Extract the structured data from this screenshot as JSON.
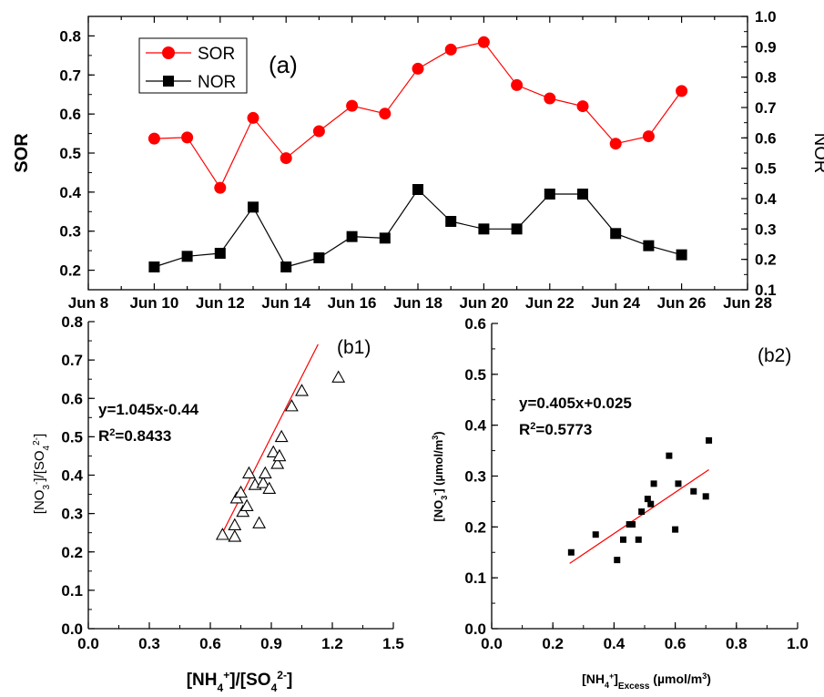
{
  "chart_data": [
    {
      "id": "a",
      "type": "line",
      "panel_label": "(a)",
      "x": [
        "2023-06-10",
        "2023-06-11",
        "2023-06-12",
        "2023-06-13",
        "2023-06-14",
        "2023-06-15",
        "2023-06-16",
        "2023-06-17",
        "2023-06-18",
        "2023-06-19",
        "2023-06-20",
        "2023-06-21",
        "2023-06-22",
        "2023-06-23",
        "2023-06-24",
        "2023-06-25",
        "2023-06-26"
      ],
      "xticks": [
        "Jun 8",
        "Jun 10",
        "Jun 12",
        "Jun 14",
        "Jun 16",
        "Jun 18",
        "Jun 20",
        "Jun 22",
        "Jun 24",
        "Jun 26",
        "Jun 28"
      ],
      "xlim": [
        "2023-06-08",
        "2023-06-28"
      ],
      "ylabel": "SOR",
      "ylim": [
        0.15,
        0.85
      ],
      "yticks": [
        "0.2",
        "0.3",
        "0.4",
        "0.5",
        "0.6",
        "0.7",
        "0.8"
      ],
      "y2label": "NOR",
      "y2lim": [
        0.1,
        1.0
      ],
      "y2ticks": [
        "0.1",
        "0.2",
        "0.3",
        "0.4",
        "0.5",
        "0.6",
        "0.7",
        "0.8",
        "0.9",
        "1.0"
      ],
      "legend_position": "top-left",
      "series": [
        {
          "name": "SOR",
          "axis": "left",
          "color": "#ff0000",
          "marker": "circle",
          "values": [
            0.537,
            0.54,
            0.411,
            0.59,
            0.487,
            0.556,
            0.621,
            0.601,
            0.716,
            0.765,
            0.784,
            0.674,
            0.64,
            0.62,
            0.524,
            0.543,
            0.659
          ]
        },
        {
          "name": "NOR",
          "axis": "right",
          "color": "#000000",
          "marker": "square",
          "values": [
            0.175,
            0.21,
            0.22,
            0.372,
            0.175,
            0.205,
            0.275,
            0.27,
            0.43,
            0.325,
            0.3,
            0.3,
            0.415,
            0.415,
            0.285,
            0.245,
            0.215
          ]
        }
      ]
    },
    {
      "id": "b1",
      "type": "scatter",
      "panel_label": "(b1)",
      "xlabel": "[NH4+]/[SO42-]",
      "ylabel": "[NO3-]/[SO42-]",
      "xlim": [
        0.0,
        1.5
      ],
      "ylim": [
        0.0,
        0.8
      ],
      "xticks": [
        "0.0",
        "0.3",
        "0.6",
        "0.9",
        "1.2",
        "1.5"
      ],
      "yticks": [
        "0.0",
        "0.1",
        "0.2",
        "0.3",
        "0.4",
        "0.5",
        "0.6",
        "0.7",
        "0.8"
      ],
      "equation": "y=1.045x-0.44",
      "r2_label": "R",
      "r2_exp": "2",
      "r2_value": "=0.8433",
      "fit": {
        "slope": 1.045,
        "intercept": -0.44,
        "x_range": [
          0.66,
          1.13
        ],
        "color": "#ff0000"
      },
      "points": [
        [
          0.66,
          0.245
        ],
        [
          0.72,
          0.24
        ],
        [
          0.72,
          0.27
        ],
        [
          0.73,
          0.34
        ],
        [
          0.75,
          0.355
        ],
        [
          0.76,
          0.305
        ],
        [
          0.78,
          0.32
        ],
        [
          0.79,
          0.405
        ],
        [
          0.82,
          0.375
        ],
        [
          0.84,
          0.275
        ],
        [
          0.86,
          0.38
        ],
        [
          0.87,
          0.405
        ],
        [
          0.89,
          0.365
        ],
        [
          0.91,
          0.46
        ],
        [
          0.93,
          0.43
        ],
        [
          0.94,
          0.45
        ],
        [
          0.95,
          0.5
        ],
        [
          1.0,
          0.58
        ],
        [
          1.05,
          0.62
        ],
        [
          1.23,
          0.655
        ]
      ]
    },
    {
      "id": "b2",
      "type": "scatter",
      "panel_label": "(b2)",
      "xlabel": "[NH4+]Excess (µmol/m3)",
      "ylabel": "[NO3-] (µmol/m3)",
      "xlim": [
        0.0,
        1.0
      ],
      "ylim": [
        0.0,
        0.6
      ],
      "xticks": [
        "0.0",
        "0.2",
        "0.4",
        "0.6",
        "0.8",
        "1.0"
      ],
      "yticks": [
        "0.0",
        "0.1",
        "0.2",
        "0.3",
        "0.4",
        "0.5",
        "0.6"
      ],
      "equation": "y=0.405x+0.025",
      "r2_label": "R",
      "r2_exp": "2",
      "r2_value": "=0.5773",
      "fit": {
        "slope": 0.405,
        "intercept": 0.025,
        "x_range": [
          0.255,
          0.71
        ],
        "color": "#ff0000"
      },
      "points": [
        [
          0.26,
          0.15
        ],
        [
          0.34,
          0.185
        ],
        [
          0.41,
          0.135
        ],
        [
          0.43,
          0.175
        ],
        [
          0.45,
          0.205
        ],
        [
          0.46,
          0.205
        ],
        [
          0.48,
          0.175
        ],
        [
          0.49,
          0.23
        ],
        [
          0.51,
          0.255
        ],
        [
          0.52,
          0.245
        ],
        [
          0.53,
          0.285
        ],
        [
          0.58,
          0.34
        ],
        [
          0.6,
          0.195
        ],
        [
          0.61,
          0.285
        ],
        [
          0.66,
          0.27
        ],
        [
          0.7,
          0.26
        ],
        [
          0.71,
          0.37
        ]
      ]
    }
  ],
  "legend": {
    "sor": "SOR",
    "nor": "NOR"
  }
}
